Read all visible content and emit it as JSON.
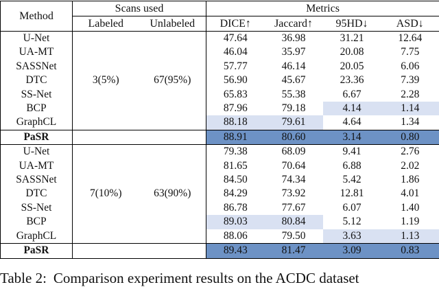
{
  "table": {
    "headers": {
      "method": "Method",
      "scans_used": "Scans used",
      "metrics": "Metrics",
      "labeled": "Labeled",
      "unlabeled": "Unlabeled",
      "dice": "DICE↑",
      "jaccard": "Jaccard↑",
      "hd95": "95HD↓",
      "asd": "ASD↓"
    },
    "highlight_colors": {
      "best": "#6d92c5",
      "second": "#d9e1f2"
    },
    "sections": [
      {
        "labeled": "3(5%)",
        "unlabeled": "67(95%)",
        "rows": [
          {
            "method": "U-Net",
            "dice": "47.64",
            "jaccard": "36.98",
            "hd95": "31.21",
            "asd": "12.64"
          },
          {
            "method": "UA-MT",
            "dice": "46.04",
            "jaccard": "35.97",
            "hd95": "20.08",
            "asd": "7.75"
          },
          {
            "method": "SASSNet",
            "dice": "57.77",
            "jaccard": "46.14",
            "hd95": "20.05",
            "asd": "6.06"
          },
          {
            "method": "DTC",
            "dice": "56.90",
            "jaccard": "45.67",
            "hd95": "23.36",
            "asd": "7.39"
          },
          {
            "method": "SS-Net",
            "dice": "65.83",
            "jaccard": "55.38",
            "hd95": "6.67",
            "asd": "2.28"
          },
          {
            "method": "BCP",
            "dice": "87.96",
            "jaccard": "79.18",
            "hd95": "4.14",
            "asd": "1.14"
          },
          {
            "method": "GraphCL",
            "dice": "88.18",
            "jaccard": "79.61",
            "hd95": "4.64",
            "asd": "1.34"
          },
          {
            "method": "PaSR",
            "dice": "88.91",
            "jaccard": "80.60",
            "hd95": "3.14",
            "asd": "0.80"
          }
        ]
      },
      {
        "labeled": "7(10%)",
        "unlabeled": "63(90%)",
        "rows": [
          {
            "method": "U-Net",
            "dice": "79.38",
            "jaccard": "68.09",
            "hd95": "9.41",
            "asd": "2.76"
          },
          {
            "method": "UA-MT",
            "dice": "81.65",
            "jaccard": "70.64",
            "hd95": "6.88",
            "asd": "2.02"
          },
          {
            "method": "SASSNet",
            "dice": "84.50",
            "jaccard": "74.34",
            "hd95": "5.42",
            "asd": "1.86"
          },
          {
            "method": "DTC",
            "dice": "84.29",
            "jaccard": "73.92",
            "hd95": "12.81",
            "asd": "4.01"
          },
          {
            "method": "SS-Net",
            "dice": "86.78",
            "jaccard": "77.67",
            "hd95": "6.07",
            "asd": "1.40"
          },
          {
            "method": "BCP",
            "dice": "89.03",
            "jaccard": "80.84",
            "hd95": "5.12",
            "asd": "1.19"
          },
          {
            "method": "GraphCL",
            "dice": "88.06",
            "jaccard": "79.50",
            "hd95": "3.63",
            "asd": "1.13"
          },
          {
            "method": "PaSR",
            "dice": "89.43",
            "jaccard": "81.47",
            "hd95": "3.09",
            "asd": "0.83"
          }
        ]
      }
    ]
  },
  "caption": {
    "label": "Table 2:",
    "text": "Comparison experiment results on the ACDC dataset"
  }
}
